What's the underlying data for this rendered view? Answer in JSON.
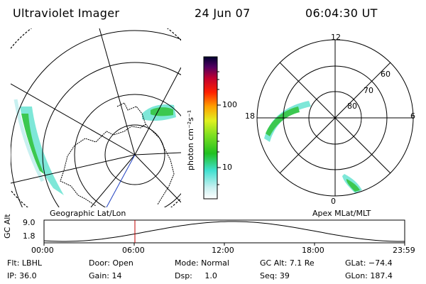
{
  "header": {
    "title": "Ultraviolet Imager",
    "date": "24 Jun 07",
    "time": "06:04:30 UT"
  },
  "colorbar": {
    "label": "photon cm⁻²s⁻¹",
    "ticks": [
      "100",
      "10"
    ],
    "scale": "log",
    "colors": [
      "#ffffff",
      "#c8f0f0",
      "#40e0d0",
      "#20c020",
      "#80e020",
      "#e0f020",
      "#ffa000",
      "#ff2000",
      "#c00030",
      "#500060",
      "#000030"
    ]
  },
  "left_map": {
    "caption": "Geographic Lat/Lon"
  },
  "right_map": {
    "caption": "Apex MLat/MLT",
    "mlt_labels": {
      "top": "12",
      "left": "18",
      "right": "6",
      "bottom": "0"
    },
    "lat_labels": [
      "60",
      "70",
      "80"
    ]
  },
  "timeline": {
    "axis_label": "GC Alt",
    "y_ticks": [
      "9.0",
      "1.8"
    ],
    "x_ticks": [
      "00:00",
      "06:00",
      "12:00",
      "18:00",
      "23:59"
    ],
    "marker_time": "06:04:30",
    "marker_color": "#c00000"
  },
  "footer": {
    "row1": [
      "Flt: LBHL",
      "Door: Open",
      "Mode: Normal",
      "GC Alt: 7.1 Re",
      "GLat: −74.4"
    ],
    "row2": [
      "IP: 36.0",
      "Gain: 14",
      "Dsp:     1.0",
      "Seq: 39",
      "GLon: 187.4"
    ]
  }
}
